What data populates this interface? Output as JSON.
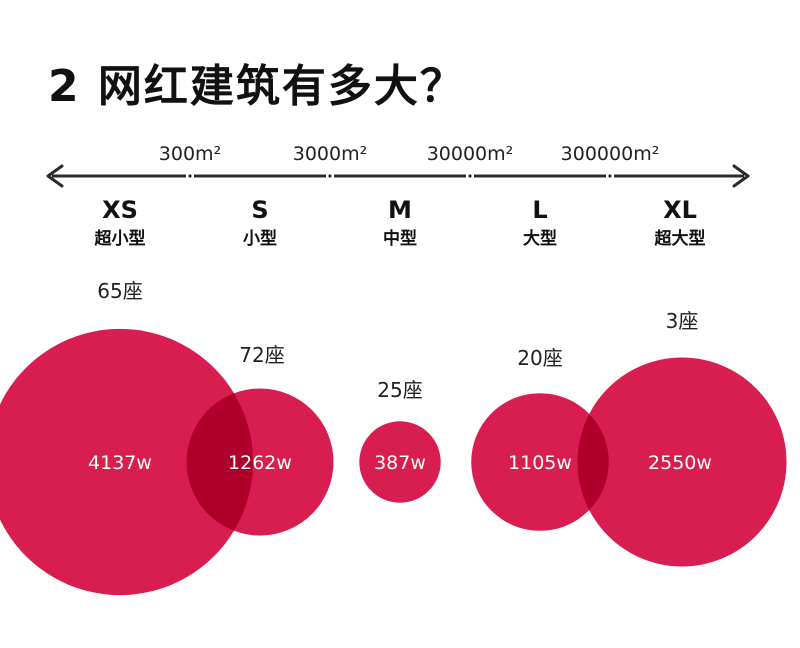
{
  "title": "2 网红建筑有多大？",
  "chart_data": {
    "type": "bubble",
    "colors": {
      "bubble": "#d81e50",
      "overlap": "#b0002a",
      "axis": "#2a2a2a"
    },
    "thresholds": [
      "300m²",
      "3000m²",
      "30000m²",
      "300000m²"
    ],
    "categories": [
      {
        "code": "XS",
        "name": "超小型",
        "count": "65座",
        "value": "4137w",
        "amount": 4137
      },
      {
        "code": "S",
        "name": "小型",
        "count": "72座",
        "value": "1262w",
        "amount": 1262
      },
      {
        "code": "M",
        "name": "中型",
        "count": "25座",
        "value": "387w",
        "amount": 387
      },
      {
        "code": "L",
        "name": "大型",
        "count": "20座",
        "value": "1105w",
        "amount": 1105
      },
      {
        "code": "XL",
        "name": "超大型",
        "count": "3座",
        "value": "2550w",
        "amount": 2550
      }
    ]
  }
}
